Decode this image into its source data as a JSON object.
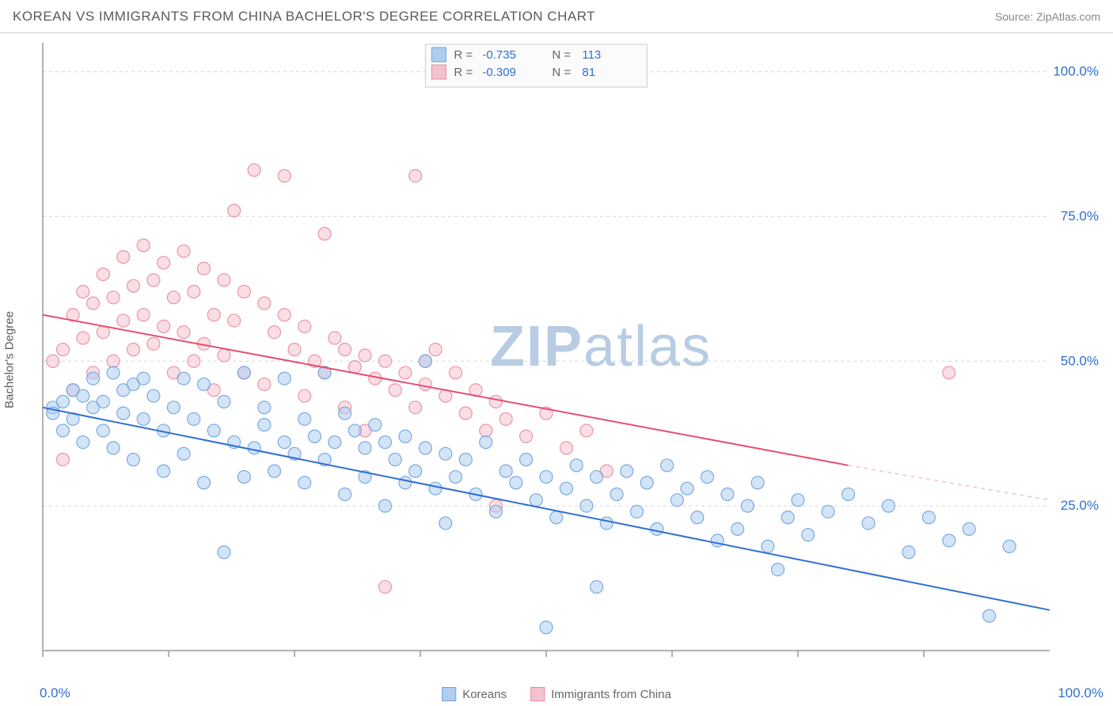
{
  "title": "KOREAN VS IMMIGRANTS FROM CHINA BACHELOR'S DEGREE CORRELATION CHART",
  "source": "Source: ZipAtlas.com",
  "ylabel": "Bachelor's Degree",
  "watermark_a": "ZIP",
  "watermark_b": "atlas",
  "watermark_color": "#b8cce4",
  "xaxis": {
    "min_label": "0.0%",
    "max_label": "100.0%",
    "color": "#2f6fd0"
  },
  "yaxis": {
    "ticks": [
      "25.0%",
      "50.0%",
      "75.0%",
      "100.0%"
    ],
    "tick_positions": [
      25,
      50,
      75,
      100
    ],
    "color": "#2f6fd0"
  },
  "grid_color": "#d8d8d8",
  "axis_line_color": "#999999",
  "plot": {
    "xlim": [
      0,
      100
    ],
    "ylim": [
      0,
      105
    ],
    "x_ticks": [
      0,
      12.5,
      25,
      37.5,
      50,
      62.5,
      75,
      87.5
    ]
  },
  "series": [
    {
      "name": "Koreans",
      "marker_radius": 8,
      "fill": "#aecdf0",
      "fill_opacity": 0.55,
      "stroke": "#6fa3dd",
      "stroke_opacity": 0.9,
      "trend": {
        "x1": 0,
        "y1": 42,
        "x2": 100,
        "y2": 7,
        "color": "#2f6fd0",
        "width": 2
      },
      "R": "-0.735",
      "N": "113",
      "swatch_fill": "#aecdf0",
      "swatch_border": "#6fa3dd",
      "points": [
        [
          1,
          42
        ],
        [
          1,
          41
        ],
        [
          2,
          43
        ],
        [
          2,
          38
        ],
        [
          3,
          45
        ],
        [
          3,
          40
        ],
        [
          4,
          44
        ],
        [
          4,
          36
        ],
        [
          5,
          47
        ],
        [
          5,
          42
        ],
        [
          6,
          43
        ],
        [
          6,
          38
        ],
        [
          7,
          48
        ],
        [
          7,
          35
        ],
        [
          8,
          45
        ],
        [
          8,
          41
        ],
        [
          9,
          46
        ],
        [
          9,
          33
        ],
        [
          10,
          47
        ],
        [
          10,
          40
        ],
        [
          11,
          44
        ],
        [
          12,
          38
        ],
        [
          12,
          31
        ],
        [
          13,
          42
        ],
        [
          14,
          47
        ],
        [
          14,
          34
        ],
        [
          15,
          40
        ],
        [
          16,
          46
        ],
        [
          16,
          29
        ],
        [
          17,
          38
        ],
        [
          18,
          43
        ],
        [
          18,
          17
        ],
        [
          19,
          36
        ],
        [
          20,
          48
        ],
        [
          20,
          30
        ],
        [
          21,
          35
        ],
        [
          22,
          42
        ],
        [
          22,
          39
        ],
        [
          23,
          31
        ],
        [
          24,
          47
        ],
        [
          24,
          36
        ],
        [
          25,
          34
        ],
        [
          26,
          40
        ],
        [
          26,
          29
        ],
        [
          27,
          37
        ],
        [
          28,
          48
        ],
        [
          28,
          33
        ],
        [
          29,
          36
        ],
        [
          30,
          41
        ],
        [
          30,
          27
        ],
        [
          31,
          38
        ],
        [
          32,
          35
        ],
        [
          32,
          30
        ],
        [
          33,
          39
        ],
        [
          34,
          36
        ],
        [
          34,
          25
        ],
        [
          35,
          33
        ],
        [
          36,
          37
        ],
        [
          36,
          29
        ],
        [
          37,
          31
        ],
        [
          38,
          50
        ],
        [
          38,
          35
        ],
        [
          39,
          28
        ],
        [
          40,
          34
        ],
        [
          40,
          22
        ],
        [
          41,
          30
        ],
        [
          42,
          33
        ],
        [
          43,
          27
        ],
        [
          44,
          36
        ],
        [
          45,
          24
        ],
        [
          46,
          31
        ],
        [
          47,
          29
        ],
        [
          48,
          33
        ],
        [
          49,
          26
        ],
        [
          50,
          30
        ],
        [
          50,
          4
        ],
        [
          51,
          23
        ],
        [
          52,
          28
        ],
        [
          53,
          32
        ],
        [
          54,
          25
        ],
        [
          55,
          30
        ],
        [
          55,
          11
        ],
        [
          56,
          22
        ],
        [
          57,
          27
        ],
        [
          58,
          31
        ],
        [
          59,
          24
        ],
        [
          60,
          29
        ],
        [
          61,
          21
        ],
        [
          62,
          32
        ],
        [
          63,
          26
        ],
        [
          64,
          28
        ],
        [
          65,
          23
        ],
        [
          66,
          30
        ],
        [
          67,
          19
        ],
        [
          68,
          27
        ],
        [
          69,
          21
        ],
        [
          70,
          25
        ],
        [
          71,
          29
        ],
        [
          72,
          18
        ],
        [
          73,
          14
        ],
        [
          74,
          23
        ],
        [
          75,
          26
        ],
        [
          76,
          20
        ],
        [
          78,
          24
        ],
        [
          80,
          27
        ],
        [
          82,
          22
        ],
        [
          84,
          25
        ],
        [
          86,
          17
        ],
        [
          88,
          23
        ],
        [
          90,
          19
        ],
        [
          92,
          21
        ],
        [
          94,
          6
        ],
        [
          96,
          18
        ]
      ]
    },
    {
      "name": "Immigrants from China",
      "marker_radius": 8,
      "fill": "#f4c2ce",
      "fill_opacity": 0.55,
      "stroke": "#e88ba2",
      "stroke_opacity": 0.9,
      "trend": {
        "x1": 0,
        "y1": 58,
        "x2": 80,
        "y2": 32,
        "color": "#e24f72",
        "width": 2
      },
      "trend_dash": {
        "x1": 80,
        "y1": 32,
        "x2": 100,
        "y2": 26,
        "color": "#f4c2ce",
        "width": 1.5
      },
      "R": "-0.309",
      "N": "81",
      "swatch_fill": "#f4c2ce",
      "swatch_border": "#e88ba2",
      "points": [
        [
          1,
          50
        ],
        [
          2,
          33
        ],
        [
          2,
          52
        ],
        [
          3,
          58
        ],
        [
          3,
          45
        ],
        [
          4,
          62
        ],
        [
          4,
          54
        ],
        [
          5,
          60
        ],
        [
          5,
          48
        ],
        [
          6,
          65
        ],
        [
          6,
          55
        ],
        [
          7,
          61
        ],
        [
          7,
          50
        ],
        [
          8,
          68
        ],
        [
          8,
          57
        ],
        [
          9,
          63
        ],
        [
          9,
          52
        ],
        [
          10,
          70
        ],
        [
          10,
          58
        ],
        [
          11,
          64
        ],
        [
          11,
          53
        ],
        [
          12,
          67
        ],
        [
          12,
          56
        ],
        [
          13,
          61
        ],
        [
          13,
          48
        ],
        [
          14,
          69
        ],
        [
          14,
          55
        ],
        [
          15,
          62
        ],
        [
          15,
          50
        ],
        [
          16,
          66
        ],
        [
          16,
          53
        ],
        [
          17,
          58
        ],
        [
          17,
          45
        ],
        [
          18,
          64
        ],
        [
          18,
          51
        ],
        [
          19,
          57
        ],
        [
          19,
          76
        ],
        [
          20,
          62
        ],
        [
          20,
          48
        ],
        [
          21,
          83
        ],
        [
          22,
          60
        ],
        [
          22,
          46
        ],
        [
          23,
          55
        ],
        [
          24,
          58
        ],
        [
          24,
          82
        ],
        [
          25,
          52
        ],
        [
          26,
          56
        ],
        [
          26,
          44
        ],
        [
          27,
          50
        ],
        [
          28,
          72
        ],
        [
          28,
          48
        ],
        [
          29,
          54
        ],
        [
          30,
          52
        ],
        [
          30,
          42
        ],
        [
          31,
          49
        ],
        [
          32,
          51
        ],
        [
          32,
          38
        ],
        [
          33,
          47
        ],
        [
          34,
          50
        ],
        [
          34,
          11
        ],
        [
          35,
          45
        ],
        [
          36,
          48
        ],
        [
          37,
          42
        ],
        [
          37,
          82
        ],
        [
          38,
          46
        ],
        [
          38,
          50
        ],
        [
          39,
          52
        ],
        [
          40,
          44
        ],
        [
          41,
          48
        ],
        [
          42,
          41
        ],
        [
          43,
          45
        ],
        [
          44,
          38
        ],
        [
          45,
          43
        ],
        [
          46,
          40
        ],
        [
          48,
          37
        ],
        [
          50,
          41
        ],
        [
          52,
          35
        ],
        [
          54,
          38
        ],
        [
          56,
          31
        ],
        [
          90,
          48
        ],
        [
          45,
          25
        ]
      ]
    }
  ],
  "stats_box": {
    "bg": "#fbfbfb",
    "border": "#cccccc",
    "label_R": "R =",
    "label_N": "N =",
    "value_color": "#2f6fd0",
    "label_color": "#666666"
  },
  "footer_legend": [
    {
      "label": "Koreans",
      "series_idx": 0
    },
    {
      "label": "Immigrants from China",
      "series_idx": 1
    }
  ]
}
